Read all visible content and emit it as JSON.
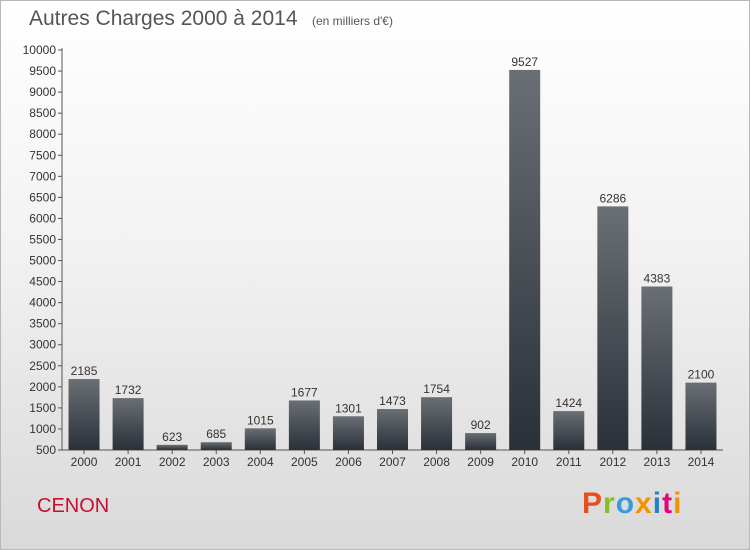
{
  "chart_data": {
    "type": "bar",
    "title": "Autres Charges 2000 à 2014",
    "subtitle": "(en milliers d'€)",
    "categories": [
      "2000",
      "2001",
      "2002",
      "2003",
      "2004",
      "2005",
      "2006",
      "2007",
      "2008",
      "2009",
      "2010",
      "2011",
      "2012",
      "2013",
      "2014"
    ],
    "values": [
      2185,
      1732,
      623,
      685,
      1015,
      1677,
      1301,
      1473,
      1754,
      902,
      9527,
      1424,
      6286,
      4383,
      2100
    ],
    "ylim": [
      500,
      10000
    ],
    "yticks": [
      500,
      1000,
      1500,
      2000,
      2500,
      3000,
      3500,
      4000,
      4500,
      5000,
      5500,
      6000,
      6500,
      7000,
      7500,
      8000,
      8500,
      9000,
      9500,
      10000
    ],
    "xlabel": "",
    "ylabel": "",
    "grid": false,
    "legend": "none",
    "bar_color_top": "#6a6f75",
    "bar_color_bottom": "#2a3038"
  },
  "footer": {
    "commune": "CENON",
    "brand": "Proxiti",
    "brand_colors": [
      "#e94e1b",
      "#8bbd22",
      "#3b9bd8",
      "#f39200",
      "#2e7fc1",
      "#e5007e",
      "#f39200"
    ]
  }
}
